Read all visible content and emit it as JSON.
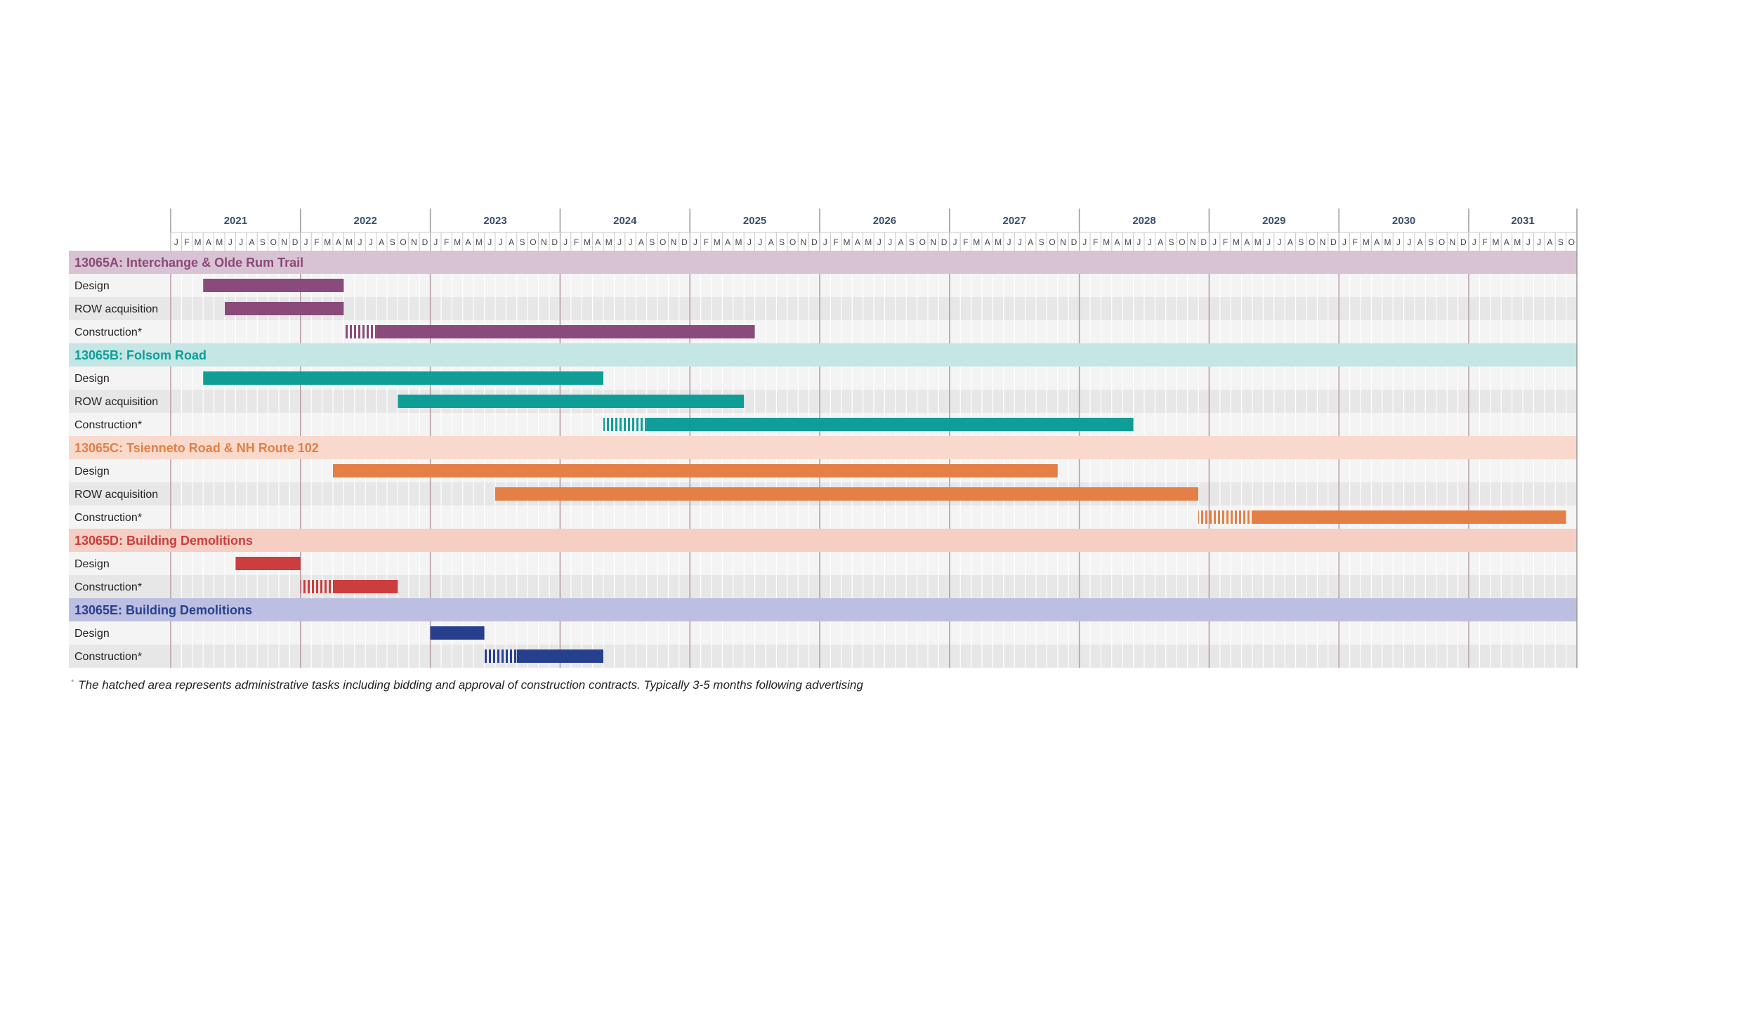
{
  "chart_data": {
    "type": "gantt",
    "years": [
      "2021",
      "2022",
      "2023",
      "2024",
      "2025",
      "2026",
      "2027",
      "2028",
      "2029",
      "2030",
      "2031"
    ],
    "months": [
      "J",
      "F",
      "M",
      "A",
      "M",
      "J",
      "J",
      "A",
      "S",
      "O",
      "N",
      "D"
    ],
    "end_month": "2031-10",
    "groups": [
      {
        "name": "13065A: Interchange & Olde Rum Trail",
        "color": "#8a4a7b",
        "band": "#d8c3d3",
        "tasks": [
          {
            "label": "Design",
            "start": "2021-04",
            "end": "2022-05"
          },
          {
            "label": "ROW acquisition",
            "start": "2021-06",
            "end": "2022-05"
          },
          {
            "label": "Construction*",
            "hatch_start": "2022-05",
            "start": "2022-08",
            "end": "2025-07"
          }
        ]
      },
      {
        "name": "13065B: Folsom Road",
        "color": "#0f9e97",
        "band": "#c4e6e5",
        "tasks": [
          {
            "label": "Design",
            "start": "2021-04",
            "end": "2024-05"
          },
          {
            "label": "ROW acquisition",
            "start": "2022-10",
            "end": "2025-06"
          },
          {
            "label": "Construction*",
            "hatch_start": "2024-05",
            "start": "2024-09",
            "end": "2028-06"
          }
        ]
      },
      {
        "name": "13065C: Tsienneto Road & NH Route 102",
        "color": "#e47f45",
        "band": "#f8d9cc",
        "tasks": [
          {
            "label": "Design",
            "start": "2022-04",
            "end": "2027-11"
          },
          {
            "label": "ROW acquisition",
            "start": "2023-07",
            "end": "2028-12"
          },
          {
            "label": "Construction*",
            "hatch_start": "2028-12",
            "start": "2029-05",
            "end": "2031-10"
          }
        ]
      },
      {
        "name": "13065D: Building Demolitions",
        "color": "#cc3d3d",
        "band": "#f5cfc4",
        "tasks": [
          {
            "label": "Design",
            "start": "2021-07",
            "end": "2022-01"
          },
          {
            "label": "Construction*",
            "hatch_start": "2022-01",
            "start": "2022-04",
            "end": "2022-10"
          }
        ]
      },
      {
        "name": "13065E: Building Demolitions",
        "color": "#27408e",
        "band": "#bcbfe1",
        "tasks": [
          {
            "label": "Design",
            "start": "2023-01",
            "end": "2023-06"
          },
          {
            "label": "Construction*",
            "hatch_start": "2023-06",
            "start": "2023-09",
            "end": "2024-05"
          }
        ]
      }
    ]
  },
  "footnote": {
    "marker": "*",
    "text": "The hatched area represents administrative tasks including bidding and approval of construction contracts. Typically 3-5 months following advertising"
  }
}
